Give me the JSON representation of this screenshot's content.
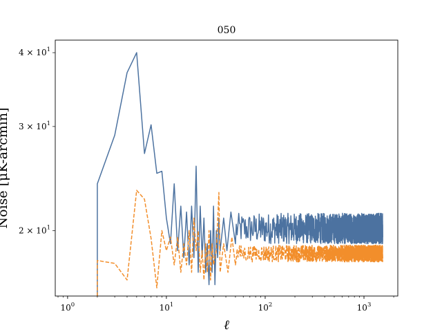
{
  "chart_data": {
    "type": "line",
    "title": "050",
    "xlabel": "ℓ",
    "ylabel": "Noise [μK-arcmin]",
    "xscale": "log",
    "yscale": "log",
    "xlim": [
      0.75,
      2200
    ],
    "ylim": [
      15.5,
      42
    ],
    "x_ticks": [
      {
        "value": 1,
        "label": "10",
        "exp": "0"
      },
      {
        "value": 10,
        "label": "10",
        "exp": "1"
      },
      {
        "value": 100,
        "label": "10",
        "exp": "2"
      },
      {
        "value": 1000,
        "label": "10",
        "exp": "3"
      }
    ],
    "y_ticks": [
      {
        "value": 20,
        "label": "2 × 10",
        "exp": "1"
      },
      {
        "value": 30,
        "label": "3 × 10",
        "exp": "1"
      },
      {
        "value": 40,
        "label": "4 × 10",
        "exp": "1"
      }
    ],
    "grid": false,
    "legend": "none",
    "series": [
      {
        "color": "#4c72a0",
        "style": "solid",
        "low_ell": [
          [
            2,
            15.5
          ],
          [
            2,
            24
          ],
          [
            3,
            29
          ],
          [
            4,
            37
          ],
          [
            5,
            40
          ],
          [
            6,
            27
          ],
          [
            7,
            30.2
          ],
          [
            8,
            25
          ],
          [
            9,
            25.2
          ],
          [
            10,
            21
          ],
          [
            11,
            19
          ],
          [
            12,
            24
          ],
          [
            13,
            18.5
          ],
          [
            14,
            22
          ],
          [
            15,
            18
          ],
          [
            16,
            21.5
          ],
          [
            17,
            17.5
          ],
          [
            18,
            22
          ],
          [
            19,
            18
          ],
          [
            20,
            25.7
          ],
          [
            21,
            17
          ],
          [
            22,
            22
          ],
          [
            23,
            18
          ],
          [
            24,
            21
          ],
          [
            25,
            17
          ],
          [
            26,
            19
          ],
          [
            27,
            16.2
          ],
          [
            28,
            20
          ],
          [
            29,
            17
          ],
          [
            30,
            22
          ],
          [
            31,
            16.2
          ],
          [
            32,
            20
          ],
          [
            33,
            18
          ],
          [
            34,
            21
          ],
          [
            35,
            18.5
          ],
          [
            38,
            21
          ],
          [
            41,
            18.5
          ],
          [
            45,
            21.5
          ],
          [
            50,
            19
          ]
        ],
        "high_ell_band": {
          "ell_min": 50,
          "ell_max": 1550,
          "center": 20.1,
          "low": 19.0,
          "high": 21.4
        }
      },
      {
        "color": "#f28e2b",
        "style": "dashed",
        "low_ell": [
          [
            2,
            15.5
          ],
          [
            2,
            17.8
          ],
          [
            3,
            17.6
          ],
          [
            4,
            16.5
          ],
          [
            5,
            23.4
          ],
          [
            6,
            22.6
          ],
          [
            7,
            19.4
          ],
          [
            8,
            16
          ],
          [
            9,
            20
          ],
          [
            10,
            18.5
          ],
          [
            11,
            19.5
          ],
          [
            12,
            17.5
          ],
          [
            13,
            19.5
          ],
          [
            14,
            17
          ],
          [
            15,
            19
          ],
          [
            16,
            17.5
          ],
          [
            17,
            20
          ],
          [
            18,
            17
          ],
          [
            19,
            21
          ],
          [
            20,
            18.5
          ],
          [
            21,
            20
          ],
          [
            22,
            17
          ],
          [
            23,
            18.5
          ],
          [
            24,
            16.5
          ],
          [
            25,
            19
          ],
          [
            26,
            17
          ],
          [
            27,
            20
          ],
          [
            28,
            16.5
          ],
          [
            29,
            19
          ],
          [
            30,
            17.5
          ],
          [
            32,
            18.5
          ],
          [
            34,
            23.2
          ],
          [
            35,
            17
          ],
          [
            38,
            19
          ],
          [
            42,
            17
          ],
          [
            46,
            19.5
          ],
          [
            50,
            17.5
          ]
        ],
        "high_ell_band": {
          "ell_min": 50,
          "ell_max": 1550,
          "center": 18.3,
          "low": 17.7,
          "high": 18.9
        }
      }
    ]
  }
}
